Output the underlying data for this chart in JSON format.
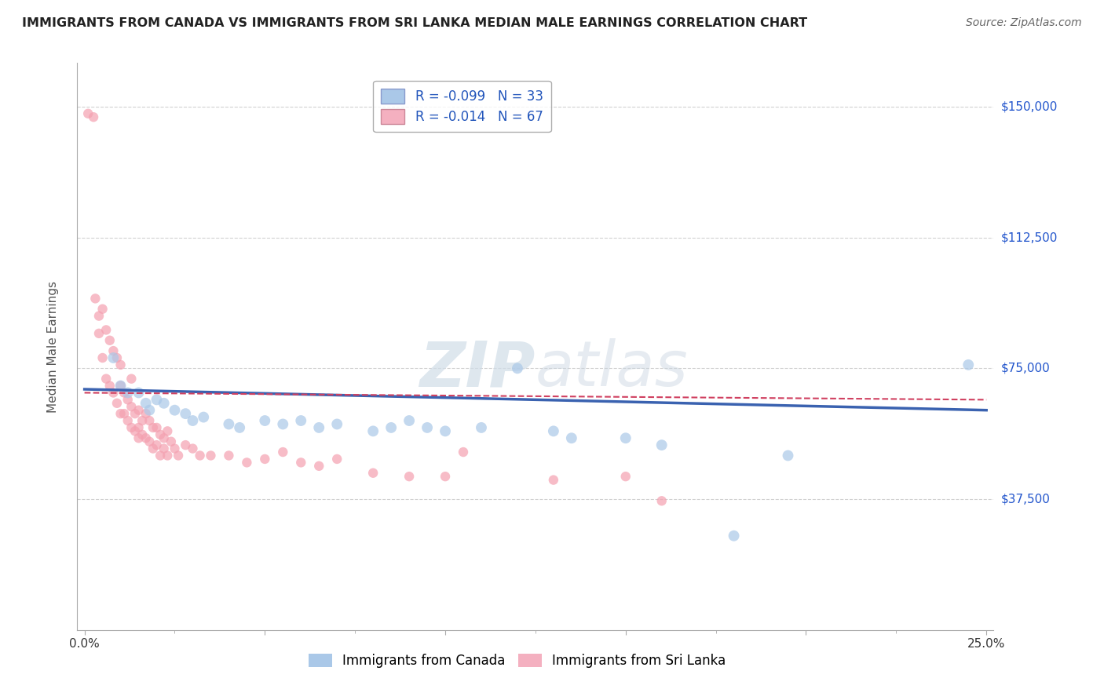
{
  "title": "IMMIGRANTS FROM CANADA VS IMMIGRANTS FROM SRI LANKA MEDIAN MALE EARNINGS CORRELATION CHART",
  "source": "Source: ZipAtlas.com",
  "ylabel": "Median Male Earnings",
  "xlim": [
    -0.002,
    0.252
  ],
  "ylim": [
    0,
    162500
  ],
  "yticks": [
    0,
    37500,
    75000,
    112500,
    150000
  ],
  "ytick_labels": [
    "",
    "$37,500",
    "$75,000",
    "$112,500",
    "$150,000"
  ],
  "xticks": [
    0.0,
    0.05,
    0.1,
    0.15,
    0.2,
    0.25
  ],
  "xtick_labels": [
    "0.0%",
    "",
    "",
    "",
    "",
    "25.0%"
  ],
  "canada_color": "#aac8e8",
  "srilanka_color": "#f4a0b0",
  "canada_line_color": "#3a62b0",
  "srilanka_line_color": "#d04060",
  "watermark_text": "ZIPatlas",
  "background_color": "#ffffff",
  "grid_color": "#cccccc",
  "canada_points": [
    [
      0.008,
      78000
    ],
    [
      0.01,
      70000
    ],
    [
      0.012,
      68000
    ],
    [
      0.015,
      68000
    ],
    [
      0.017,
      65000
    ],
    [
      0.018,
      63000
    ],
    [
      0.02,
      66000
    ],
    [
      0.022,
      65000
    ],
    [
      0.025,
      63000
    ],
    [
      0.028,
      62000
    ],
    [
      0.03,
      60000
    ],
    [
      0.033,
      61000
    ],
    [
      0.04,
      59000
    ],
    [
      0.043,
      58000
    ],
    [
      0.05,
      60000
    ],
    [
      0.055,
      59000
    ],
    [
      0.06,
      60000
    ],
    [
      0.065,
      58000
    ],
    [
      0.07,
      59000
    ],
    [
      0.08,
      57000
    ],
    [
      0.085,
      58000
    ],
    [
      0.09,
      60000
    ],
    [
      0.095,
      58000
    ],
    [
      0.1,
      57000
    ],
    [
      0.11,
      58000
    ],
    [
      0.12,
      75000
    ],
    [
      0.13,
      57000
    ],
    [
      0.135,
      55000
    ],
    [
      0.15,
      55000
    ],
    [
      0.16,
      53000
    ],
    [
      0.18,
      27000
    ],
    [
      0.195,
      50000
    ],
    [
      0.245,
      76000
    ]
  ],
  "srilanka_points": [
    [
      0.001,
      148000
    ],
    [
      0.0025,
      147000
    ],
    [
      0.003,
      95000
    ],
    [
      0.004,
      90000
    ],
    [
      0.004,
      85000
    ],
    [
      0.005,
      92000
    ],
    [
      0.005,
      78000
    ],
    [
      0.006,
      86000
    ],
    [
      0.006,
      72000
    ],
    [
      0.007,
      83000
    ],
    [
      0.007,
      70000
    ],
    [
      0.008,
      80000
    ],
    [
      0.008,
      68000
    ],
    [
      0.009,
      78000
    ],
    [
      0.009,
      65000
    ],
    [
      0.01,
      76000
    ],
    [
      0.01,
      62000
    ],
    [
      0.01,
      70000
    ],
    [
      0.011,
      68000
    ],
    [
      0.011,
      62000
    ],
    [
      0.012,
      66000
    ],
    [
      0.012,
      60000
    ],
    [
      0.013,
      64000
    ],
    [
      0.013,
      58000
    ],
    [
      0.013,
      72000
    ],
    [
      0.014,
      62000
    ],
    [
      0.014,
      57000
    ],
    [
      0.015,
      63000
    ],
    [
      0.015,
      58000
    ],
    [
      0.015,
      55000
    ],
    [
      0.016,
      60000
    ],
    [
      0.016,
      56000
    ],
    [
      0.017,
      62000
    ],
    [
      0.017,
      55000
    ],
    [
      0.018,
      60000
    ],
    [
      0.018,
      54000
    ],
    [
      0.019,
      58000
    ],
    [
      0.019,
      52000
    ],
    [
      0.02,
      58000
    ],
    [
      0.02,
      53000
    ],
    [
      0.021,
      56000
    ],
    [
      0.021,
      50000
    ],
    [
      0.022,
      55000
    ],
    [
      0.022,
      52000
    ],
    [
      0.023,
      57000
    ],
    [
      0.023,
      50000
    ],
    [
      0.024,
      54000
    ],
    [
      0.025,
      52000
    ],
    [
      0.026,
      50000
    ],
    [
      0.028,
      53000
    ],
    [
      0.03,
      52000
    ],
    [
      0.032,
      50000
    ],
    [
      0.035,
      50000
    ],
    [
      0.04,
      50000
    ],
    [
      0.045,
      48000
    ],
    [
      0.05,
      49000
    ],
    [
      0.055,
      51000
    ],
    [
      0.06,
      48000
    ],
    [
      0.065,
      47000
    ],
    [
      0.07,
      49000
    ],
    [
      0.08,
      45000
    ],
    [
      0.09,
      44000
    ],
    [
      0.1,
      44000
    ],
    [
      0.105,
      51000
    ],
    [
      0.13,
      43000
    ],
    [
      0.15,
      44000
    ],
    [
      0.16,
      37000
    ]
  ],
  "canada_size": 100,
  "srilanka_size": 80
}
